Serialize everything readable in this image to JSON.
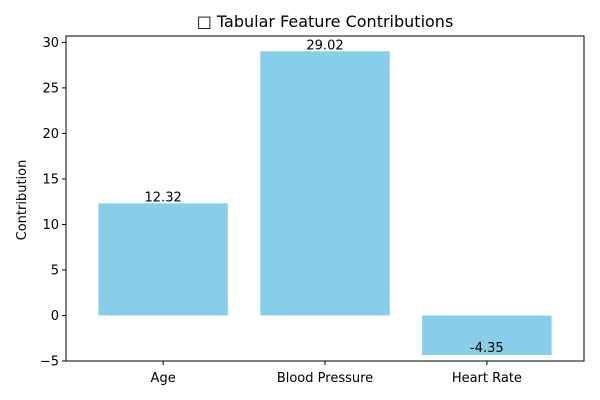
{
  "chart_data": {
    "type": "bar",
    "title": "□ Tabular Feature Contributions",
    "xlabel": "",
    "ylabel": "Contribution",
    "categories": [
      "Age",
      "Blood Pressure",
      "Heart Rate"
    ],
    "values": [
      12.32,
      29.02,
      -4.35
    ],
    "value_labels": [
      "12.32",
      "29.02",
      "-4.35"
    ],
    "ylim": [
      -5.0,
      30.7
    ],
    "yticks": [
      -5,
      0,
      5,
      10,
      15,
      20,
      25,
      30
    ],
    "ytick_labels": [
      "−5",
      "0",
      "5",
      "10",
      "15",
      "20",
      "25",
      "30"
    ],
    "bar_color": "#87ceeb",
    "grid": false,
    "legend": "none"
  }
}
